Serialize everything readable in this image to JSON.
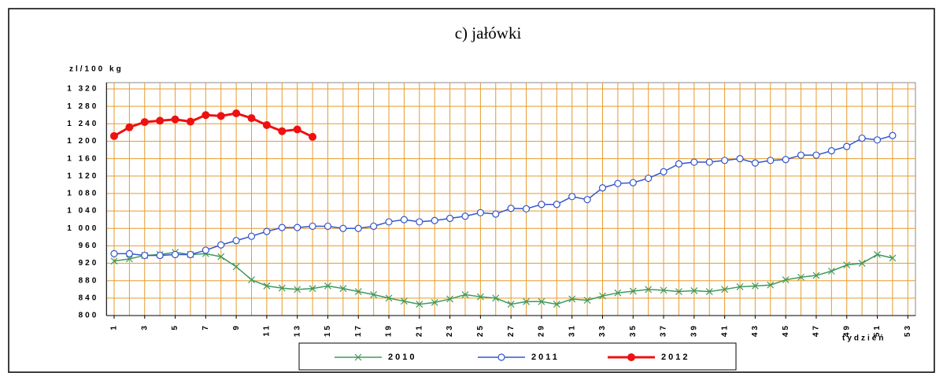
{
  "chart_data": {
    "type": "line",
    "title": "c) jałówki",
    "y_label": "zl/100 kg",
    "x_label": "tydzień",
    "x": [
      1,
      2,
      3,
      4,
      5,
      6,
      7,
      8,
      9,
      10,
      11,
      12,
      13,
      14,
      15,
      16,
      17,
      18,
      19,
      20,
      21,
      22,
      23,
      24,
      25,
      26,
      27,
      28,
      29,
      30,
      31,
      32,
      33,
      34,
      35,
      36,
      37,
      38,
      39,
      40,
      41,
      42,
      43,
      44,
      45,
      46,
      47,
      48,
      49,
      50,
      51,
      52,
      53
    ],
    "xlim": [
      0.5,
      53.5
    ],
    "xticks": [
      1,
      3,
      5,
      7,
      9,
      11,
      13,
      15,
      17,
      19,
      21,
      23,
      25,
      27,
      29,
      31,
      33,
      35,
      37,
      39,
      41,
      43,
      45,
      47,
      49,
      51,
      53
    ],
    "ylim": [
      800,
      1320
    ],
    "yticks": [
      800,
      840,
      880,
      920,
      960,
      {
        "value": 1000,
        "label": "1 000"
      },
      {
        "value": 1040,
        "label": "1 040"
      },
      {
        "value": 1080,
        "label": "1 080"
      },
      {
        "value": 1120,
        "label": "1 120"
      },
      {
        "value": 1160,
        "label": "1 160"
      },
      {
        "value": 1200,
        "label": "1 200"
      },
      {
        "value": 1240,
        "label": "1 240"
      },
      {
        "value": 1280,
        "label": "1 280"
      },
      {
        "value": 1320,
        "label": "1 320"
      }
    ],
    "grid": true,
    "grid_color": "#e69b2e",
    "legend": "bottom",
    "series": [
      {
        "name": "2010",
        "color": "#3f9a5b",
        "marker": "x",
        "values": [
          925,
          930,
          938,
          940,
          945,
          940,
          942,
          935,
          912,
          882,
          868,
          863,
          860,
          862,
          868,
          862,
          855,
          848,
          840,
          833,
          826,
          830,
          838,
          848,
          843,
          840,
          826,
          832,
          832,
          826,
          838,
          835,
          845,
          852,
          856,
          860,
          858,
          855,
          857,
          855,
          860,
          866,
          868,
          870,
          882,
          888,
          892,
          902,
          916,
          920,
          940,
          932,
          null
        ]
      },
      {
        "name": "2011",
        "color": "#3355cc",
        "marker": "circle",
        "values": [
          942,
          942,
          938,
          938,
          940,
          940,
          950,
          962,
          972,
          982,
          993,
          1002,
          1002,
          1005,
          1005,
          1000,
          1000,
          1005,
          1015,
          1020,
          1015,
          1018,
          1023,
          1028,
          1036,
          1033,
          1046,
          1045,
          1055,
          1055,
          1073,
          1066,
          1093,
          1103,
          1105,
          1115,
          1130,
          1148,
          1152,
          1152,
          1156,
          1160,
          1150,
          1156,
          1158,
          1168,
          1168,
          1178,
          1188,
          1207,
          1203,
          1213,
          null
        ]
      },
      {
        "name": "2012",
        "color": "#ee1111",
        "marker": "dot",
        "values": [
          1212,
          1232,
          1244,
          1247,
          1250,
          1245,
          1260,
          1258,
          1264,
          1253,
          1237,
          1223,
          1227,
          1210,
          null,
          null,
          null,
          null,
          null,
          null,
          null,
          null,
          null,
          null,
          null,
          null,
          null,
          null,
          null,
          null,
          null,
          null,
          null,
          null,
          null,
          null,
          null,
          null,
          null,
          null,
          null,
          null,
          null,
          null,
          null,
          null,
          null,
          null,
          null,
          null,
          null,
          null,
          null
        ]
      }
    ]
  }
}
